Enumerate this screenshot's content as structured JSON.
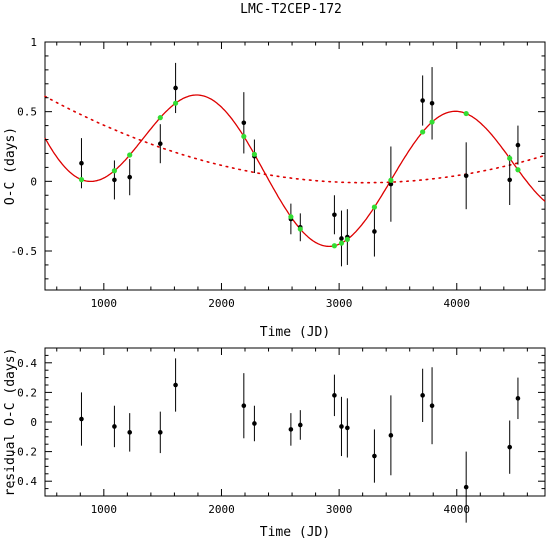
{
  "title": "LMC-T2CEP-172",
  "chart_data": [
    {
      "type": "scatter",
      "xlabel": "Time (JD)",
      "ylabel": "O-C (days)",
      "xlim": [
        500,
        4750
      ],
      "ylim": [
        -0.78,
        1.0
      ],
      "xticks": [
        1000,
        2000,
        3000,
        4000
      ],
      "xtick_labels": [
        "1000",
        "2000",
        "3000",
        "4000"
      ],
      "yticks": [
        -0.5,
        0,
        0.5,
        1
      ],
      "ytick_labels": [
        "-0.5",
        "0",
        "0.5",
        "1"
      ],
      "grid": false,
      "series": [
        {
          "kind": "points",
          "color": "#000000",
          "x": [
            810,
            1090,
            1220,
            1480,
            1610,
            2190,
            2280,
            2590,
            2670,
            2960,
            3020,
            3070,
            3300,
            3440,
            3710,
            3790,
            4080,
            4450,
            4520
          ],
          "y": [
            0.13,
            0.01,
            0.03,
            0.27,
            0.67,
            0.42,
            0.18,
            -0.27,
            -0.33,
            -0.24,
            -0.41,
            -0.4,
            -0.36,
            -0.02,
            0.58,
            0.56,
            0.04,
            0.01,
            0.26
          ],
          "err": [
            0.18,
            0.14,
            0.13,
            0.14,
            0.18,
            0.22,
            0.12,
            0.11,
            0.1,
            0.14,
            0.2,
            0.2,
            0.18,
            0.27,
            0.18,
            0.26,
            0.24,
            0.18,
            0.14
          ]
        },
        {
          "kind": "points",
          "color": "#33dd33",
          "x": [
            810,
            1090,
            1220,
            1480,
            1610,
            2190,
            2280,
            2590,
            2670,
            2960,
            3020,
            3070,
            3300,
            3440,
            3710,
            3790,
            4080,
            4450,
            4520
          ]
        }
      ],
      "curves": [
        {
          "style": "solid",
          "color": "#dd0000",
          "model": "sinusoid_plus_parabola"
        },
        {
          "style": "dotted",
          "color": "#dd0000",
          "model": "parabola",
          "x_min": 3220,
          "y_min": -0.01
        }
      ]
    },
    {
      "type": "scatter",
      "xlabel": "Time (JD)",
      "ylabel": "residual O-C (days)",
      "xlim": [
        500,
        4750
      ],
      "ylim": [
        -0.5,
        0.5
      ],
      "xticks": [
        1000,
        2000,
        3000,
        4000
      ],
      "xtick_labels": [
        "1000",
        "2000",
        "3000",
        "4000"
      ],
      "yticks": [
        -0.4,
        -0.2,
        0,
        0.2,
        0.4
      ],
      "ytick_labels": [
        "-0.4",
        "-0.2",
        "0",
        "0.2",
        "0.4"
      ],
      "grid": false,
      "series": [
        {
          "kind": "points",
          "color": "#000000",
          "x": [
            810,
            1090,
            1220,
            1480,
            1610,
            2190,
            2280,
            2590,
            2670,
            2960,
            3020,
            3070,
            3300,
            3440,
            3710,
            3790,
            4080,
            4450,
            4520
          ],
          "y": [
            0.02,
            -0.03,
            -0.07,
            -0.07,
            0.25,
            0.11,
            -0.01,
            -0.05,
            -0.02,
            0.18,
            -0.03,
            -0.04,
            -0.23,
            -0.09,
            0.18,
            0.11,
            -0.44,
            -0.17,
            0.16
          ],
          "err": [
            0.18,
            0.14,
            0.13,
            0.14,
            0.18,
            0.22,
            0.12,
            0.11,
            0.1,
            0.14,
            0.2,
            0.2,
            0.18,
            0.27,
            0.18,
            0.26,
            0.24,
            0.18,
            0.14
          ]
        }
      ]
    }
  ]
}
